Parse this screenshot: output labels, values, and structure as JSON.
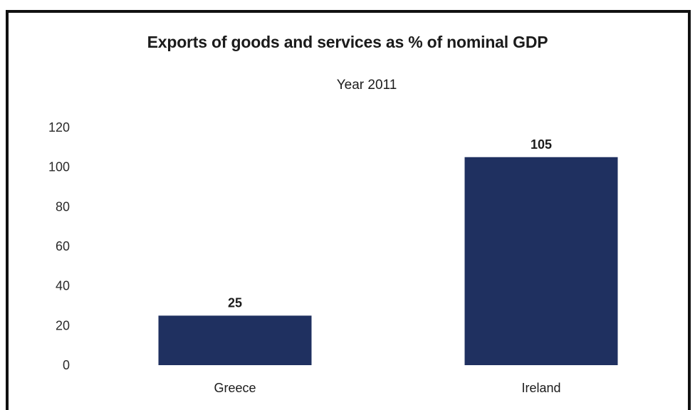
{
  "chart_data": {
    "type": "bar",
    "title": "Exports of goods and services as % of nominal GDP",
    "subtitle": "Year 2011",
    "xlabel": "",
    "ylabel": "",
    "categories": [
      "Greece",
      "Ireland"
    ],
    "values": [
      25,
      105
    ],
    "data_labels": [
      "25",
      "105"
    ],
    "ylim": [
      0,
      120
    ],
    "yticks": [
      0,
      20,
      40,
      60,
      80,
      100,
      120
    ],
    "grid": false,
    "legend": "none",
    "bar_color": "#1f3060"
  }
}
